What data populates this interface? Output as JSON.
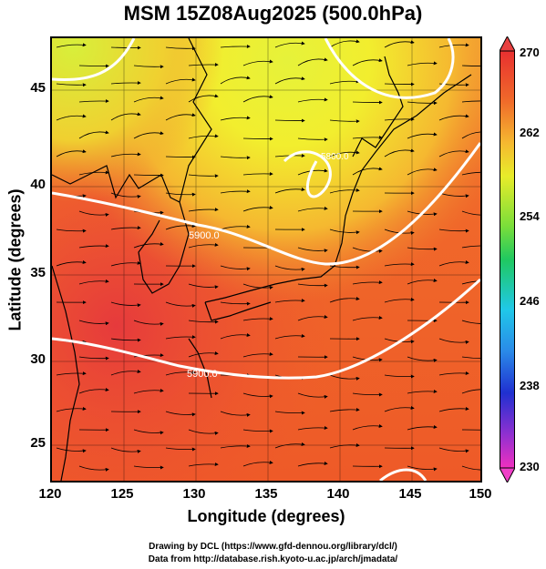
{
  "title": "MSM 15Z08Aug2025 (500.0hPa)",
  "x_axis": {
    "label": "Longitude (degrees)",
    "ticks": [
      "120",
      "125",
      "130",
      "135",
      "140",
      "145",
      "150"
    ]
  },
  "y_axis": {
    "label": "Latitude  (degrees)",
    "ticks": [
      "45",
      "40",
      "35",
      "30",
      "25"
    ]
  },
  "colorbar": {
    "ticks": [
      "270",
      "262",
      "254",
      "246",
      "238",
      "230"
    ],
    "unit_range": [
      230,
      270
    ]
  },
  "contour_labels": [
    "5800.0",
    "5900.0",
    "5800.0"
  ],
  "credits": {
    "line1": "Drawing by DCL (https://www.gfd-dennou.org/library/dcl/)",
    "line2": "Data from http://database.rish.kyoto-u.ac.jp/arch/jmadata/"
  },
  "colors": {
    "warm": "#f05a2a",
    "hot": "#e8383a",
    "cool": "#f0e830",
    "coolest": "#c8e820"
  }
}
